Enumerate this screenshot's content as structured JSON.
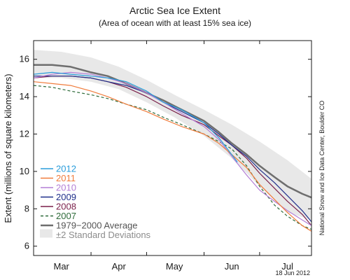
{
  "chart_data": {
    "type": "line",
    "title": "Arctic Sea Ice Extent",
    "subtitle": "(Area of ocean with at least 15% sea ice)",
    "ylabel": "Extent (millions of square kilometers)",
    "xlabel": "",
    "ylim": [
      5.5,
      17
    ],
    "yticks": [
      6,
      8,
      10,
      12,
      14,
      16
    ],
    "xlim": [
      0,
      150
    ],
    "x_months": [
      {
        "label": "Mar",
        "day": 15
      },
      {
        "label": "Apr",
        "day": 46
      },
      {
        "label": "May",
        "day": 76
      },
      {
        "label": "Jun",
        "day": 107
      },
      {
        "label": "Jul",
        "day": 137
      }
    ],
    "x_month_boundaries": [
      0,
      31,
      61,
      92,
      122
    ],
    "grid": false,
    "legend_position": "bottom-left",
    "source": "National Snow and Ice Data Center, Boulder CO",
    "date": "18 Jun 2012",
    "band": {
      "name": "±2 Standard Deviations",
      "color": "#e8e8e8",
      "x": [
        0,
        15,
        31,
        46,
        61,
        76,
        92,
        107,
        122,
        137,
        150
      ],
      "upper": [
        16.5,
        16.4,
        16.1,
        15.6,
        14.9,
        14.1,
        13.3,
        12.5,
        11.6,
        10.6,
        9.6
      ],
      "lower": [
        15.0,
        15.0,
        14.8,
        14.4,
        13.7,
        12.9,
        11.9,
        10.7,
        9.2,
        7.8,
        7.4
      ]
    },
    "series": [
      {
        "name": "2012",
        "color": "#2a9ddb",
        "dash": "",
        "x": [
          0,
          10,
          20,
          31,
          40,
          50,
          61,
          70,
          80,
          92,
          100,
          110
        ],
        "y": [
          15.2,
          15.3,
          15.2,
          15.1,
          15.0,
          14.8,
          14.3,
          13.7,
          13.3,
          12.6,
          11.8,
          10.5
        ]
      },
      {
        "name": "2011",
        "color": "#f07c3c",
        "dash": "",
        "x": [
          0,
          10,
          20,
          31,
          40,
          50,
          61,
          70,
          80,
          92,
          100,
          107,
          115,
          122,
          130,
          137,
          145,
          150
        ],
        "y": [
          14.8,
          14.7,
          14.6,
          14.3,
          14.0,
          13.6,
          13.2,
          12.8,
          12.4,
          12.0,
          11.5,
          10.9,
          10.2,
          9.3,
          8.5,
          7.8,
          7.1,
          6.8
        ]
      },
      {
        "name": "2010",
        "color": "#b37fd6",
        "dash": "",
        "x": [
          0,
          10,
          20,
          31,
          40,
          50,
          61,
          70,
          80,
          92,
          100,
          107,
          115,
          122,
          130,
          137,
          145,
          150
        ],
        "y": [
          15.0,
          15.2,
          15.3,
          15.2,
          15.0,
          14.7,
          14.2,
          13.7,
          13.1,
          12.4,
          11.7,
          10.8,
          9.8,
          9.0,
          8.4,
          7.9,
          7.4,
          7.1
        ]
      },
      {
        "name": "2009",
        "color": "#1f2f8a",
        "dash": "",
        "x": [
          0,
          10,
          20,
          31,
          40,
          50,
          61,
          70,
          80,
          92,
          100,
          107,
          115,
          122,
          130,
          137,
          145,
          150
        ],
        "y": [
          15.1,
          15.1,
          15.1,
          15.0,
          14.8,
          14.6,
          14.2,
          13.7,
          13.2,
          12.6,
          12.0,
          11.4,
          10.8,
          10.1,
          9.4,
          8.7,
          7.9,
          7.3
        ]
      },
      {
        "name": "2008",
        "color": "#7a1f4a",
        "dash": "",
        "x": [
          0,
          10,
          20,
          31,
          40,
          50,
          61,
          70,
          80,
          92,
          100,
          107,
          115,
          122,
          130,
          137,
          145,
          150
        ],
        "y": [
          15.0,
          15.1,
          15.1,
          15.0,
          14.8,
          14.5,
          14.0,
          13.5,
          13.0,
          12.5,
          11.9,
          11.4,
          10.7,
          9.9,
          9.1,
          8.4,
          7.7,
          7.1
        ]
      },
      {
        "name": "2007",
        "color": "#2e6b3a",
        "dash": "4,3",
        "x": [
          0,
          10,
          20,
          31,
          40,
          50,
          61,
          70,
          80,
          92,
          100,
          107,
          115,
          122,
          130,
          137,
          145,
          150
        ],
        "y": [
          14.6,
          14.5,
          14.3,
          14.1,
          13.9,
          13.6,
          13.3,
          12.9,
          12.5,
          12.0,
          11.6,
          11.2,
          10.3,
          9.2,
          8.2,
          7.6,
          7.1,
          6.9
        ]
      },
      {
        "name": "1979−2000 Average",
        "color": "#6e6e6e",
        "dash": "",
        "width": 2.5,
        "x": [
          0,
          10,
          20,
          31,
          40,
          50,
          61,
          70,
          80,
          92,
          100,
          107,
          115,
          122,
          130,
          137,
          145,
          150
        ],
        "y": [
          15.7,
          15.7,
          15.6,
          15.3,
          15.1,
          14.7,
          14.2,
          13.8,
          13.3,
          12.7,
          12.1,
          11.5,
          10.9,
          10.3,
          9.7,
          9.2,
          8.8,
          8.6
        ]
      }
    ]
  }
}
